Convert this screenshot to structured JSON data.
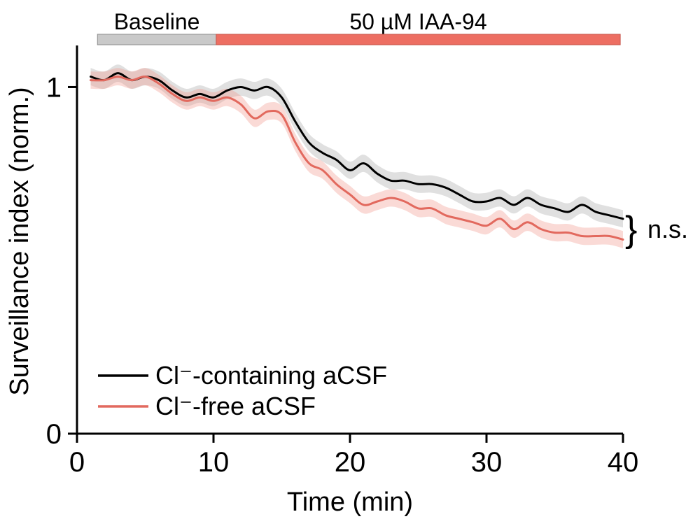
{
  "chart_data": {
    "type": "line",
    "title": "",
    "xlabel": "Time (min)",
    "ylabel": "Surveillance index (norm.)",
    "xlim": [
      0,
      40
    ],
    "ylim": [
      0,
      1.12
    ],
    "xticks": [
      0,
      10,
      20,
      30,
      40
    ],
    "yticks": [
      0,
      1
    ],
    "grid": false,
    "legend_position": "bottom-left-inside",
    "x": [
      1,
      2,
      3,
      4,
      5,
      6,
      7,
      8,
      9,
      10,
      11,
      12,
      13,
      14,
      15,
      16,
      17,
      18,
      19,
      20,
      21,
      22,
      23,
      24,
      25,
      26,
      27,
      28,
      29,
      30,
      31,
      32,
      33,
      34,
      35,
      36,
      37,
      38,
      39,
      40
    ],
    "series": [
      {
        "name": "Cl⁻-containing aCSF",
        "color": "#000000",
        "band_color": "#999999",
        "band_opacity": 0.3,
        "band": 0.025,
        "values": [
          1.03,
          1.02,
          1.04,
          1.02,
          1.03,
          1.02,
          0.99,
          0.97,
          0.98,
          0.97,
          0.99,
          1.0,
          0.99,
          1.0,
          0.97,
          0.9,
          0.84,
          0.81,
          0.79,
          0.76,
          0.78,
          0.75,
          0.73,
          0.73,
          0.72,
          0.72,
          0.71,
          0.69,
          0.67,
          0.67,
          0.68,
          0.66,
          0.68,
          0.66,
          0.65,
          0.64,
          0.66,
          0.64,
          0.63,
          0.62
        ]
      },
      {
        "name": "Cl⁻-free aCSF",
        "color": "#e2695e",
        "band_color": "#f0948a",
        "band_opacity": 0.35,
        "band": 0.025,
        "values": [
          1.02,
          1.02,
          1.03,
          1.02,
          1.03,
          1.01,
          0.98,
          0.96,
          0.97,
          0.96,
          0.97,
          0.95,
          0.91,
          0.93,
          0.92,
          0.84,
          0.78,
          0.76,
          0.72,
          0.69,
          0.66,
          0.67,
          0.68,
          0.67,
          0.65,
          0.65,
          0.63,
          0.62,
          0.61,
          0.6,
          0.62,
          0.59,
          0.61,
          0.59,
          0.58,
          0.58,
          0.57,
          0.57,
          0.57,
          0.56
        ]
      }
    ],
    "phase_bars": [
      {
        "label": "Baseline",
        "start": 1.5,
        "end": 10.2,
        "fill": "#c9c9c9",
        "stroke": "#8f8f8f"
      },
      {
        "label": "50 µM IAA-94",
        "start": 10.2,
        "end": 39.8,
        "fill": "#ed6e62",
        "stroke": "#c8584e"
      }
    ],
    "annotation": {
      "brace": "}",
      "label": "n.s."
    }
  }
}
